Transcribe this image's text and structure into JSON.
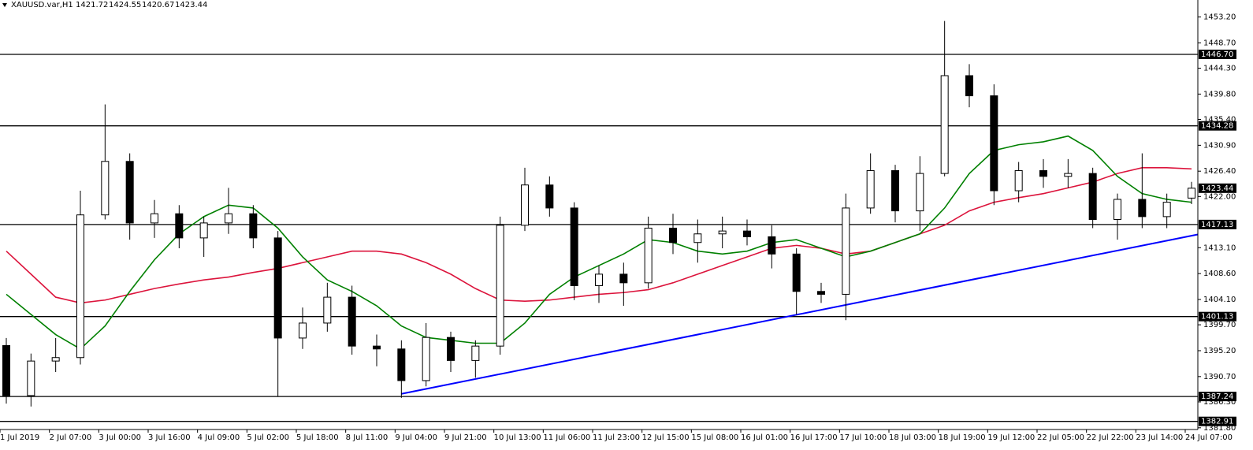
{
  "chart_data": {
    "type": "candlestick",
    "symbol": "XAUUSD.var,H1",
    "ohlc": [
      1421.72,
      1424.55,
      1420.67,
      1423.44
    ],
    "categories": [
      "1 Jul 2019",
      null,
      "2 Jul 07:00",
      null,
      "3 Jul 00:00",
      null,
      "3 Jul 16:00",
      null,
      "4 Jul 09:00",
      null,
      "5 Jul 02:00",
      null,
      "5 Jul 18:00",
      null,
      "8 Jul 11:00",
      null,
      "9 Jul 04:00",
      null,
      "9 Jul 21:00",
      null,
      "10 Jul 13:00",
      null,
      "11 Jul 06:00",
      null,
      "11 Jul 23:00",
      null,
      "12 Jul 15:00",
      null,
      "15 Jul 08:00",
      null,
      "16 Jul 01:00",
      null,
      "16 Jul 17:00",
      null,
      "17 Jul 10:00",
      null,
      "18 Jul 03:00",
      null,
      "18 Jul 19:00",
      null,
      "19 Jul 12:00",
      null,
      "22 Jul 05:00",
      null,
      "22 Jul 22:00",
      null,
      "23 Jul 14:00",
      null,
      "24 Jul 07:00"
    ],
    "open": [
      1396.1,
      1387.4,
      1393.4,
      1394.0,
      1418.8,
      1428.1,
      1417.4,
      1419.0,
      1414.8,
      1417.4,
      1419.0,
      1414.8,
      1397.4,
      1400.0,
      1404.5,
      1396.0,
      1395.5,
      1390.0,
      1397.5,
      1393.5,
      1396.0,
      1417.0,
      1424.0,
      1420.0,
      1406.5,
      1408.5,
      1407.0,
      1416.5,
      1414.0,
      1415.5,
      1416.0,
      1415.0,
      1412.0,
      1405.5,
      1405.0,
      1420.0,
      1426.5,
      1419.5,
      1426.0,
      1443.0,
      1439.5,
      1423.0,
      1426.5,
      1425.5,
      1426.0,
      1418.0,
      1421.5,
      1418.5,
      1421.72
    ],
    "high": [
      1397.4,
      1394.7,
      1397.4,
      1423.0,
      1438.0,
      1429.5,
      1421.4,
      1420.5,
      1418.5,
      1423.5,
      1420.5,
      1416.0,
      1402.7,
      1407.0,
      1406.5,
      1398.0,
      1397.0,
      1400.0,
      1398.5,
      1397.0,
      1418.5,
      1427.0,
      1425.5,
      1421.0,
      1410.0,
      1410.5,
      1418.5,
      1419.0,
      1418.0,
      1418.5,
      1418.0,
      1417.0,
      1413.0,
      1407.0,
      1422.5,
      1429.5,
      1427.5,
      1429.0,
      1452.5,
      1445.0,
      1441.5,
      1428.0,
      1428.5,
      1428.5,
      1427.0,
      1422.5,
      1429.5,
      1422.5,
      1424.55
    ],
    "low": [
      1386.0,
      1385.5,
      1391.5,
      1392.8,
      1418.0,
      1414.5,
      1414.8,
      1413.0,
      1411.5,
      1415.5,
      1413.0,
      1387.2,
      1395.5,
      1398.5,
      1394.5,
      1392.5,
      1387.0,
      1389.0,
      1391.5,
      1390.5,
      1394.5,
      1416.0,
      1418.5,
      1404.0,
      1403.5,
      1403.0,
      1406.0,
      1412.0,
      1410.5,
      1413.0,
      1413.5,
      1409.5,
      1401.5,
      1403.5,
      1400.5,
      1419.0,
      1417.5,
      1416.0,
      1425.5,
      1437.5,
      1420.5,
      1421.0,
      1423.5,
      1423.5,
      1416.5,
      1414.5,
      1416.5,
      1416.5,
      1420.67
    ],
    "close": [
      1387.4,
      1393.4,
      1394.0,
      1418.8,
      1428.1,
      1417.4,
      1419.0,
      1414.8,
      1417.4,
      1419.0,
      1414.8,
      1397.4,
      1400.0,
      1404.5,
      1396.0,
      1395.5,
      1390.0,
      1397.5,
      1393.5,
      1396.0,
      1417.0,
      1424.0,
      1420.0,
      1406.5,
      1408.5,
      1407.0,
      1416.5,
      1414.0,
      1415.5,
      1416.0,
      1415.0,
      1412.0,
      1405.5,
      1405.0,
      1420.0,
      1426.5,
      1419.5,
      1426.0,
      1443.0,
      1439.5,
      1423.0,
      1426.5,
      1425.5,
      1426.0,
      1418.0,
      1421.5,
      1418.5,
      1421.0,
      1423.44
    ],
    "moving_averages": [
      {
        "color": "#dc143c",
        "values": [
          1412.5,
          1408.5,
          1404.5,
          1403.5,
          1404.0,
          1405.0,
          1406.0,
          1406.8,
          1407.5,
          1408.0,
          1408.8,
          1409.5,
          1410.5,
          1411.5,
          1412.5,
          1412.5,
          1412.0,
          1410.5,
          1408.5,
          1406.0,
          1404.0,
          1403.8,
          1404.0,
          1404.5,
          1405.0,
          1405.3,
          1405.8,
          1407.0,
          1408.5,
          1410.0,
          1411.5,
          1413.0,
          1413.5,
          1413.0,
          1412.0,
          1412.5,
          1414.0,
          1415.5,
          1417.0,
          1419.5,
          1421.0,
          1421.8,
          1422.5,
          1423.5,
          1424.5,
          1426.0,
          1427.0,
          1427.0,
          1426.8
        ]
      },
      {
        "color": "#008000",
        "values": [
          1405.0,
          1401.5,
          1398.0,
          1395.5,
          1399.5,
          1405.5,
          1411.0,
          1415.5,
          1418.5,
          1420.5,
          1420.0,
          1416.5,
          1411.5,
          1407.5,
          1405.5,
          1403.0,
          1399.5,
          1397.5,
          1397.0,
          1396.5,
          1396.5,
          1400.0,
          1405.0,
          1408.0,
          1410.0,
          1412.0,
          1414.5,
          1414.0,
          1412.5,
          1412.0,
          1412.5,
          1414.0,
          1414.5,
          1413.0,
          1411.5,
          1412.5,
          1414.0,
          1415.5,
          1420.0,
          1426.0,
          1430.0,
          1431.0,
          1431.5,
          1432.5,
          1430.0,
          1425.5,
          1422.5,
          1421.5,
          1421.0
        ]
      }
    ],
    "trendline": {
      "color": "#0000ff",
      "values": [
        1387.7,
        1415.4
      ]
    },
    "levels": [
      {
        "value": 1446.7,
        "label": "1446.70"
      },
      1434.28,
      1417.13,
      1401.13,
      1387.24,
      1382.91
    ],
    "last_price": 1423.44,
    "ylim": [
      1381.5,
      1456.15
    ],
    "yticks": [
      {
        "value": 1453.2,
        "label": "1453.20"
      },
      {
        "value": 1448.7,
        "label": "1448.70"
      },
      {
        "value": 1444.3,
        "label": "1444.30"
      },
      {
        "value": 1439.8,
        "label": "1439.80"
      },
      {
        "value": 1435.4,
        "label": "1435.40"
      },
      {
        "value": 1430.9,
        "label": "1430.90"
      },
      {
        "value": 1426.4,
        "label": "1426.40"
      },
      {
        "value": 1422.0,
        "label": "1422.00"
      },
      {
        "value": 1413.1,
        "label": "1413.10"
      },
      {
        "value": 1408.6,
        "label": "1408.60"
      },
      {
        "value": 1404.1,
        "label": "1404.10"
      },
      {
        "value": 1399.7,
        "label": "1399.70"
      },
      {
        "value": 1395.2,
        "label": "1395.20"
      },
      {
        "value": 1390.7,
        "label": "1390.70"
      },
      {
        "value": 1386.3,
        "label": "1386.30"
      },
      {
        "value": 1381.8,
        "label": "1381.80"
      }
    ]
  }
}
